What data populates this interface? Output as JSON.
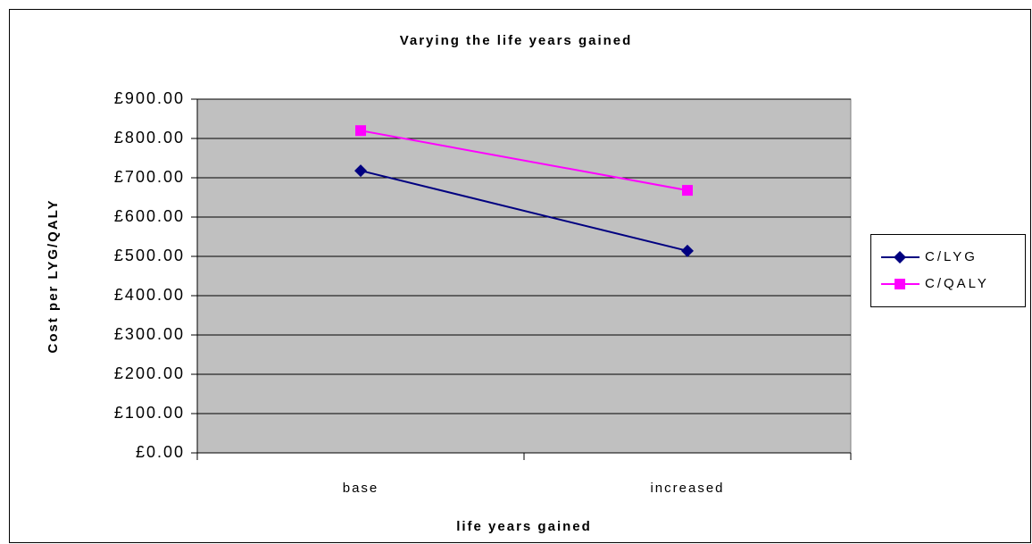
{
  "chart_data": {
    "type": "line",
    "title": "Varying the life years gained",
    "x_label": "life years gained",
    "y_label": "Cost per LYG/QALY",
    "categories": [
      "base",
      "increased"
    ],
    "series": [
      {
        "name": "C/LYG",
        "color": "#000080",
        "marker": "diamond",
        "values": [
          718,
          514
        ]
      },
      {
        "name": "C/QALY",
        "color": "#ff00ff",
        "marker": "square",
        "values": [
          820,
          668
        ]
      }
    ],
    "ylim": [
      0,
      900
    ],
    "yticks": [
      {
        "value": 0,
        "label": "£0.00"
      },
      {
        "value": 100,
        "label": "£100.00"
      },
      {
        "value": 200,
        "label": "£200.00"
      },
      {
        "value": 300,
        "label": "£300.00"
      },
      {
        "value": 400,
        "label": "£400.00"
      },
      {
        "value": 500,
        "label": "£500.00"
      },
      {
        "value": 600,
        "label": "£600.00"
      },
      {
        "value": 700,
        "label": "£700.00"
      },
      {
        "value": 800,
        "label": "£800.00"
      },
      {
        "value": 900,
        "label": "£900.00"
      }
    ],
    "grid": true,
    "legend": "right"
  }
}
